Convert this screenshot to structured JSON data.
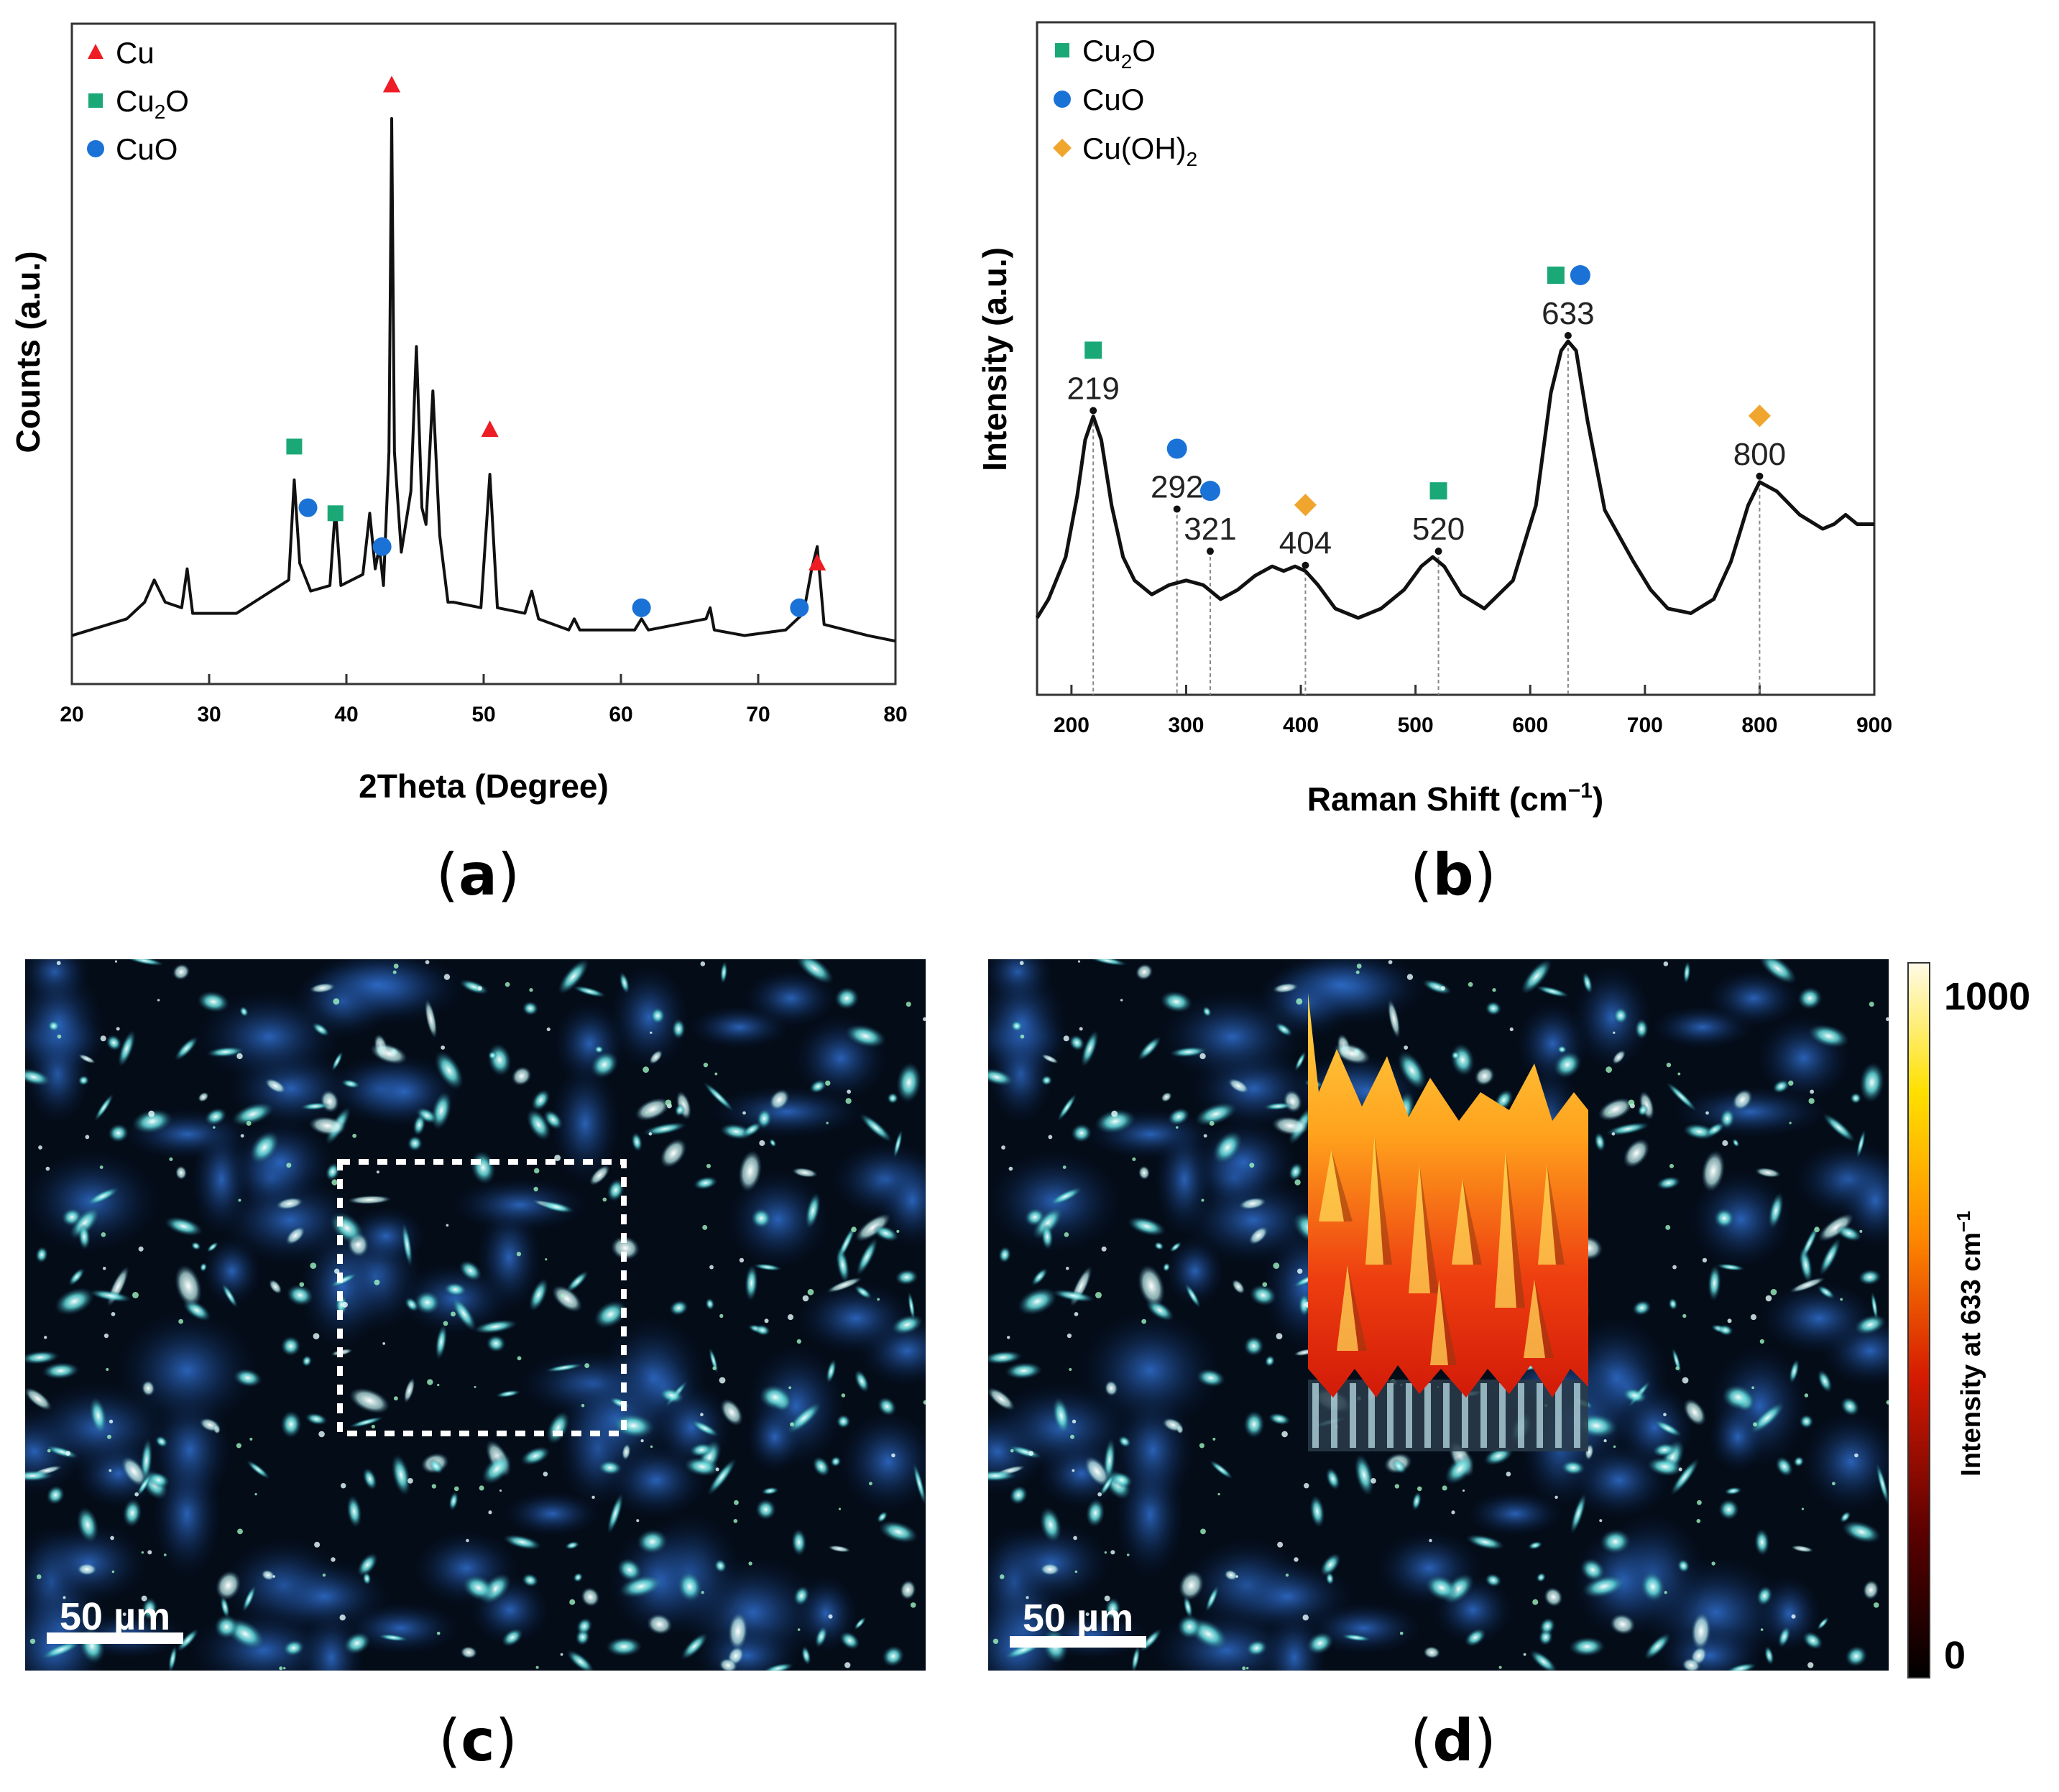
{
  "panel_labels": [
    "a",
    "b",
    "c",
    "d"
  ],
  "colors": {
    "cu": "#ee1c25",
    "cu2o": "#1aa876",
    "cuo": "#1b72d6",
    "cuoh2": "#f0a62e",
    "line": "#111111"
  },
  "chart_data": [
    {
      "type": "line",
      "title": "",
      "xlabel": "2Theta (Degree)",
      "ylabel": "Counts (a.u.)",
      "xlim": [
        20,
        80
      ],
      "ylim": [
        0,
        100
      ],
      "xticks": [
        20,
        30,
        40,
        50,
        60,
        70,
        80
      ],
      "grid": false,
      "legend": {
        "placement": "top-left",
        "items": [
          {
            "label": "Cu",
            "marker": "triangle",
            "color": "#ee1c25"
          },
          {
            "label": "Cu",
            "sub": "2",
            "label_after": "O",
            "marker": "square",
            "color": "#1aa876"
          },
          {
            "label": "CuO",
            "marker": "circle",
            "color": "#1b72d6"
          }
        ]
      },
      "series": [
        {
          "x": [
            20,
            24,
            25.3,
            26,
            26.8,
            28,
            28.4,
            28.8,
            32,
            35.8,
            36.2,
            36.6,
            37.4,
            38.8,
            39.2,
            39.6,
            41.2,
            41.7,
            42.1,
            42.4,
            42.7,
            43.1,
            43.3,
            43.5,
            44,
            44.7,
            45.1,
            45.5,
            45.8,
            46.3,
            46.8,
            47.2,
            47.4,
            47.8,
            49.8,
            50.45,
            51,
            53,
            53.5,
            54,
            56.2,
            56.6,
            57,
            61,
            61.5,
            62,
            66.2,
            66.5,
            66.8,
            69,
            72,
            73.3,
            73.9,
            74.3,
            74.8,
            78,
            80
          ],
          "y": [
            2,
            5,
            8,
            12,
            8,
            7,
            14,
            6,
            6,
            12,
            30,
            15,
            10,
            11,
            25,
            11,
            13,
            24,
            14,
            18,
            11,
            35,
            95,
            35,
            17,
            28,
            54,
            25,
            22,
            46,
            20,
            12,
            8,
            8,
            7,
            31,
            7,
            6,
            10,
            5,
            3,
            5,
            3,
            3,
            5,
            3,
            5,
            7,
            3,
            2,
            3,
            6,
            14,
            18,
            4,
            2,
            1
          ]
        }
      ],
      "markers": [
        {
          "x": 36.2,
          "y": 36,
          "marker": "square",
          "color": "#1aa876"
        },
        {
          "x": 37.2,
          "y": 25,
          "marker": "circle",
          "color": "#1b72d6"
        },
        {
          "x": 39.2,
          "y": 24,
          "marker": "square",
          "color": "#1aa876"
        },
        {
          "x": 42.6,
          "y": 18,
          "marker": "circle",
          "color": "#1b72d6"
        },
        {
          "x": 43.3,
          "y": 101,
          "marker": "triangle",
          "color": "#ee1c25"
        },
        {
          "x": 50.45,
          "y": 39,
          "marker": "triangle",
          "color": "#ee1c25"
        },
        {
          "x": 61.5,
          "y": 7,
          "marker": "circle",
          "color": "#1b72d6"
        },
        {
          "x": 73,
          "y": 7,
          "marker": "circle",
          "color": "#1b72d6"
        },
        {
          "x": 74.3,
          "y": 15,
          "marker": "triangle",
          "color": "#ee1c25"
        }
      ]
    },
    {
      "type": "line",
      "title": "",
      "xlabel": "Raman Shift (cm",
      "xlabel_sup": "−1",
      "xlabel_after": ")",
      "ylabel": "Intensity (a.u.)",
      "xlim": [
        170,
        900
      ],
      "ylim": [
        0,
        100
      ],
      "xticks": [
        200,
        300,
        400,
        500,
        600,
        700,
        800,
        900
      ],
      "grid": false,
      "legend": {
        "placement": "top-left",
        "items": [
          {
            "label": "Cu",
            "sub": "2",
            "label_after": "O",
            "marker": "square",
            "color": "#1aa876"
          },
          {
            "label": "CuO",
            "marker": "circle",
            "color": "#1b72d6"
          },
          {
            "label": "Cu(OH)",
            "sub": "2",
            "label_after": "",
            "marker": "diamond",
            "color": "#f0a62e"
          }
        ]
      },
      "series": [
        {
          "x": [
            170,
            180,
            195,
            205,
            212,
            219,
            226,
            235,
            245,
            255,
            270,
            285,
            300,
            315,
            330,
            345,
            360,
            375,
            385,
            395,
            404,
            415,
            430,
            450,
            470,
            490,
            505,
            515,
            525,
            540,
            560,
            585,
            605,
            618,
            627,
            633,
            640,
            650,
            665,
            690,
            705,
            720,
            740,
            760,
            775,
            790,
            800,
            815,
            835,
            855,
            865,
            875,
            885,
            900
          ],
          "y": [
            14,
            18,
            27,
            40,
            52,
            57,
            52,
            38,
            27,
            22,
            19,
            21,
            22,
            21,
            18,
            20,
            23,
            25,
            24,
            25,
            24,
            21,
            16,
            14,
            16,
            20,
            25,
            27,
            25,
            19,
            16,
            22,
            38,
            62,
            71,
            73,
            71,
            56,
            37,
            26,
            20,
            16,
            15,
            18,
            26,
            38,
            43,
            41,
            36,
            33,
            34,
            36,
            34,
            34
          ]
        }
      ],
      "peaks": [
        {
          "x": 219,
          "y": 57,
          "label": "219",
          "markers": [
            {
              "marker": "square",
              "color": "#1aa876"
            }
          ]
        },
        {
          "x": 292,
          "y": 36,
          "label": "292",
          "markers": [
            {
              "marker": "circle",
              "color": "#1b72d6"
            }
          ]
        },
        {
          "x": 321,
          "y": 27,
          "label": "321",
          "markers": [
            {
              "marker": "circle",
              "color": "#1b72d6"
            }
          ]
        },
        {
          "x": 404,
          "y": 24,
          "label": "404",
          "markers": [
            {
              "marker": "diamond",
              "color": "#f0a62e"
            }
          ]
        },
        {
          "x": 520,
          "y": 27,
          "label": "520",
          "markers": [
            {
              "marker": "square",
              "color": "#1aa876"
            }
          ]
        },
        {
          "x": 633,
          "y": 73,
          "label": "633",
          "markers": [
            {
              "marker": "square",
              "color": "#1aa876"
            },
            {
              "marker": "circle",
              "color": "#1b72d6"
            }
          ]
        },
        {
          "x": 800,
          "y": 43,
          "label": "800",
          "markers": [
            {
              "marker": "diamond",
              "color": "#f0a62e"
            }
          ]
        }
      ]
    }
  ],
  "images": {
    "c": {
      "scale_bar": "50 µm"
    },
    "d": {
      "scale_bar": "50 µm"
    },
    "colorbar": {
      "title": "Intensity at 633 cm",
      "title_sup": "−1",
      "max_label": "1000",
      "min_label": "0",
      "range": [
        0,
        1000
      ]
    }
  }
}
